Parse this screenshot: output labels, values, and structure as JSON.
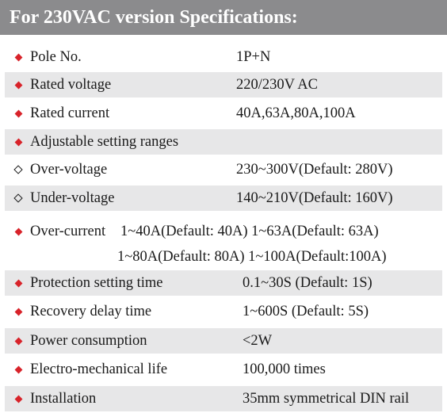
{
  "header": {
    "title": "For 230VAC version Specifications:"
  },
  "rows": [
    {
      "label": "Pole No.",
      "value": "1P+N"
    },
    {
      "label": "Rated voltage",
      "value": "220/230V AC"
    },
    {
      "label": "Rated current",
      "value": "40A,63A,80A,100A"
    },
    {
      "label": "Adjustable setting ranges",
      "value": ""
    },
    {
      "label": "Over-voltage",
      "value": "230~300V(Default: 280V)"
    },
    {
      "label": "Under-voltage",
      "value": "140~210V(Default: 160V)"
    },
    {
      "label": "Over-current",
      "line1": "1~40A(Default: 40A) 1~63A(Default: 63A)",
      "line2": "1~80A(Default: 80A)  1~100A(Default:100A)"
    },
    {
      "label": "Protection setting time",
      "value": "0.1~30S (Default: 1S)"
    },
    {
      "label": "Recovery delay time",
      "value": "1~600S (Default: 5S)"
    },
    {
      "label": "Power consumption",
      "value": "<2W"
    },
    {
      "label": "Electro-mechanical life",
      "value": "100,000 times"
    },
    {
      "label": "Installation",
      "value": "35mm symmetrical DIN rail"
    }
  ],
  "colors": {
    "header_bg": "#8b8b8d",
    "row_shade": "#e7e7e8",
    "bullet_red": "#d8232a"
  },
  "icons": {
    "filled": "red-diamond-bullet-icon",
    "outline": "outline-diamond-bullet-icon"
  }
}
